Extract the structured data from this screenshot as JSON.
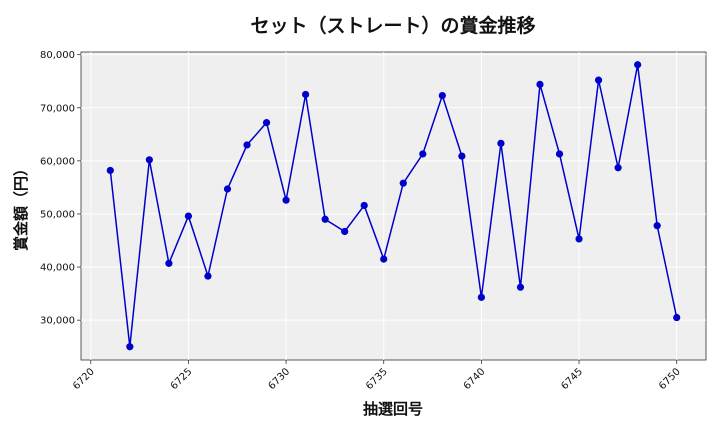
{
  "chart_data": {
    "type": "line",
    "title": "セット（ストレート）の賞金推移",
    "xlabel": "抽選回号",
    "ylabel": "賞金額（円）",
    "xlim": [
      6719.5,
      6751.5
    ],
    "ylim": [
      22500,
      80500
    ],
    "x_ticks": [
      6720,
      6725,
      6730,
      6735,
      6740,
      6745,
      6750
    ],
    "y_ticks": [
      30000,
      40000,
      50000,
      60000,
      70000,
      80000
    ],
    "y_tick_labels": [
      "30,000",
      "40,000",
      "50,000",
      "60,000",
      "70,000",
      "80,000"
    ],
    "grid": true,
    "series": [
      {
        "color": "#0000cc",
        "x": [
          6721,
          6722,
          6723,
          6724,
          6725,
          6726,
          6727,
          6728,
          6729,
          6730,
          6731,
          6732,
          6733,
          6734,
          6735,
          6736,
          6737,
          6738,
          6739,
          6740,
          6741,
          6742,
          6743,
          6744,
          6745,
          6746,
          6747,
          6748,
          6749,
          6750
        ],
        "values": [
          58200,
          25000,
          60200,
          40700,
          49600,
          38300,
          54700,
          63000,
          67200,
          52600,
          72500,
          49000,
          46700,
          51600,
          41500,
          55800,
          61300,
          72300,
          60900,
          34300,
          63300,
          36200,
          74400,
          61300,
          45300,
          75200,
          58700,
          78100,
          47800,
          30500
        ]
      }
    ]
  }
}
